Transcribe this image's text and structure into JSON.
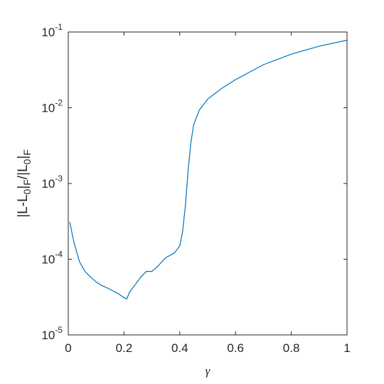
{
  "chart_data": {
    "type": "line",
    "xlabel": "γ",
    "ylabel_parts": [
      {
        "text": "|L-L",
        "sub": false
      },
      {
        "text": "0",
        "sub": true
      },
      {
        "text": "|",
        "sub": false
      },
      {
        "text": "F",
        "sub": true
      },
      {
        "text": "/|L",
        "sub": false
      },
      {
        "text": "0",
        "sub": true
      },
      {
        "text": "|",
        "sub": false
      },
      {
        "text": "F",
        "sub": true
      }
    ],
    "x": [
      0.005,
      0.02,
      0.04,
      0.06,
      0.08,
      0.1,
      0.12,
      0.15,
      0.18,
      0.2,
      0.21,
      0.22,
      0.24,
      0.26,
      0.28,
      0.3,
      0.32,
      0.35,
      0.38,
      0.4,
      0.41,
      0.42,
      0.43,
      0.44,
      0.45,
      0.47,
      0.5,
      0.55,
      0.6,
      0.7,
      0.8,
      0.9,
      1.0
    ],
    "series": [
      {
        "color": "#0072bd",
        "values": [
          0.00031,
          0.00017,
          9.3e-05,
          6.9e-05,
          5.8e-05,
          5e-05,
          4.5e-05,
          4e-05,
          3.5e-05,
          3.1e-05,
          3e-05,
          3.7e-05,
          4.6e-05,
          5.8e-05,
          6.9e-05,
          6.9e-05,
          8e-05,
          0.000105,
          0.00012,
          0.00015,
          0.00023,
          0.0005,
          0.0015,
          0.0035,
          0.006,
          0.0093,
          0.013,
          0.018,
          0.0235,
          0.037,
          0.051,
          0.065,
          0.078
        ]
      }
    ],
    "xlim": [
      0,
      1
    ],
    "xticks": [
      0,
      0.2,
      0.4,
      0.6,
      0.8,
      1
    ],
    "ylim": [
      1e-05,
      0.1
    ],
    "log_y": true,
    "yticks": [
      {
        "value": 1e-05,
        "label": "10",
        "exponent": "-5"
      },
      {
        "value": 0.0001,
        "label": "10",
        "exponent": "-4"
      },
      {
        "value": 0.001,
        "label": "10",
        "exponent": "-3"
      },
      {
        "value": 0.01,
        "label": "10",
        "exponent": "-2"
      },
      {
        "value": 0.1,
        "label": "10",
        "exponent": "-1"
      }
    ],
    "grid": false
  }
}
